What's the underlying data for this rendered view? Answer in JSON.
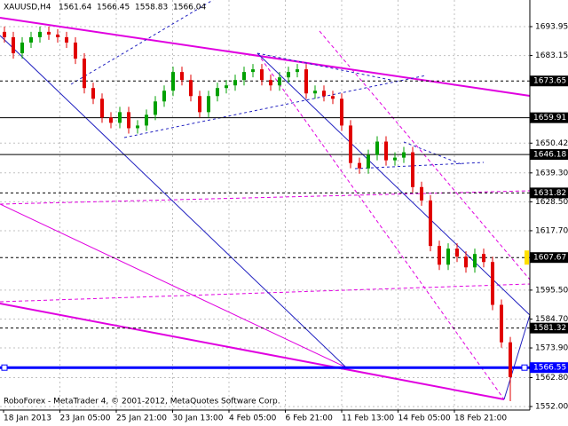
{
  "chart_data": {
    "type": "candlestick",
    "symbol": "XAUUSD,H4",
    "ohlc_header": [
      1561.64,
      1566.45,
      1558.83,
      1566.04
    ],
    "footer": "RoboForex - MetaTrader 4, © 2001-2012, MetaQuotes Software Corp.",
    "up_color": "#00a000",
    "down_color": "#e00000",
    "ylim": [
      1550.7,
      1703.9
    ],
    "yticks": [
      {
        "value": 1693.95,
        "label": "1693.95"
      },
      {
        "value": 1683.15,
        "label": "1683.15"
      },
      {
        "value": 1650.42,
        "label": "1650.42"
      },
      {
        "value": 1639.3,
        "label": "1639.30"
      },
      {
        "value": 1628.5,
        "label": "1628.50"
      },
      {
        "value": 1617.7,
        "label": "1617.70"
      },
      {
        "value": 1595.5,
        "label": "1595.50"
      },
      {
        "value": 1584.7,
        "label": "1584.70"
      },
      {
        "value": 1573.9,
        "label": "1573.90"
      },
      {
        "value": 1562.8,
        "label": "1562.80"
      },
      {
        "value": 1552.0,
        "label": "1552.00"
      }
    ],
    "grid": true,
    "xtick_labels": [
      "18 Jan 2013",
      "23 Jan 05:00",
      "25 Jan 21:00",
      "30 Jan 13:00",
      "4 Feb 05:00",
      "6 Feb 21:00",
      "11 Feb 13:00",
      "14 Feb 05:00",
      "18 Feb 21:00"
    ],
    "levels": [
      {
        "value": 1673.65,
        "style": "dashed",
        "color": "#000000"
      },
      {
        "value": 1659.91,
        "style": "solid",
        "color": "#000000"
      },
      {
        "value": 1646.18,
        "style": "solid",
        "color": "#000000"
      },
      {
        "value": 1631.82,
        "style": "dashed",
        "color": "#000000"
      },
      {
        "value": 1607.67,
        "style": "dashed",
        "color": "#000000"
      },
      {
        "value": 1581.32,
        "style": "dashed",
        "color": "#000000"
      },
      {
        "value": 1566.55,
        "style": "thick",
        "color": "#0000ff"
      }
    ],
    "open": [
      1692,
      1690,
      1684,
      1688,
      1690,
      1692,
      1691,
      1690,
      1688,
      1682,
      1671,
      1667,
      1660,
      1658,
      1662,
      1656,
      1657,
      1661,
      1666,
      1670,
      1677,
      1674,
      1668,
      1662,
      1668,
      1671,
      1672,
      1674,
      1677,
      1678,
      1674,
      1672,
      1675,
      1677,
      1678,
      1669,
      1670,
      1668,
      1667,
      1657,
      1643,
      1641,
      1646,
      1651,
      1644,
      1645,
      1647,
      1634,
      1629,
      1612,
      1605,
      1611,
      1608,
      1604,
      1609,
      1606,
      1590,
      1576
    ],
    "high": [
      1694,
      1692,
      1690,
      1692,
      1694,
      1694,
      1693,
      1692,
      1690,
      1684,
      1673,
      1669,
      1662,
      1664,
      1664,
      1659,
      1663,
      1668,
      1672,
      1679,
      1679,
      1676,
      1670,
      1670,
      1673,
      1674,
      1676,
      1679,
      1680,
      1680,
      1676,
      1677,
      1679,
      1680,
      1680,
      1672,
      1672,
      1670,
      1669,
      1659,
      1645,
      1648,
      1653,
      1653,
      1647,
      1649,
      1649,
      1636,
      1631,
      1614,
      1613,
      1613,
      1610,
      1611,
      1611,
      1608,
      1592,
      1578
    ],
    "low": [
      1688,
      1682,
      1682,
      1686,
      1688,
      1689,
      1688,
      1686,
      1680,
      1669,
      1665,
      1658,
      1656,
      1656,
      1654,
      1654,
      1655,
      1659,
      1664,
      1668,
      1672,
      1666,
      1660,
      1660,
      1666,
      1669,
      1670,
      1672,
      1675,
      1672,
      1670,
      1670,
      1673,
      1675,
      1667,
      1667,
      1666,
      1665,
      1655,
      1641,
      1639,
      1639,
      1644,
      1642,
      1642,
      1643,
      1632,
      1627,
      1610,
      1603,
      1603,
      1606,
      1602,
      1602,
      1604,
      1588,
      1574,
      1554
    ],
    "close": [
      1690,
      1684,
      1688,
      1690,
      1692,
      1691,
      1690,
      1688,
      1682,
      1671,
      1667,
      1660,
      1658,
      1662,
      1656,
      1657,
      1661,
      1666,
      1670,
      1677,
      1674,
      1668,
      1662,
      1668,
      1671,
      1672,
      1674,
      1677,
      1678,
      1674,
      1672,
      1675,
      1677,
      1678,
      1669,
      1670,
      1668,
      1667,
      1657,
      1643,
      1641,
      1646,
      1651,
      1644,
      1645,
      1647,
      1634,
      1629,
      1612,
      1605,
      1611,
      1608,
      1604,
      1609,
      1606,
      1590,
      1576,
      1563
    ]
  }
}
